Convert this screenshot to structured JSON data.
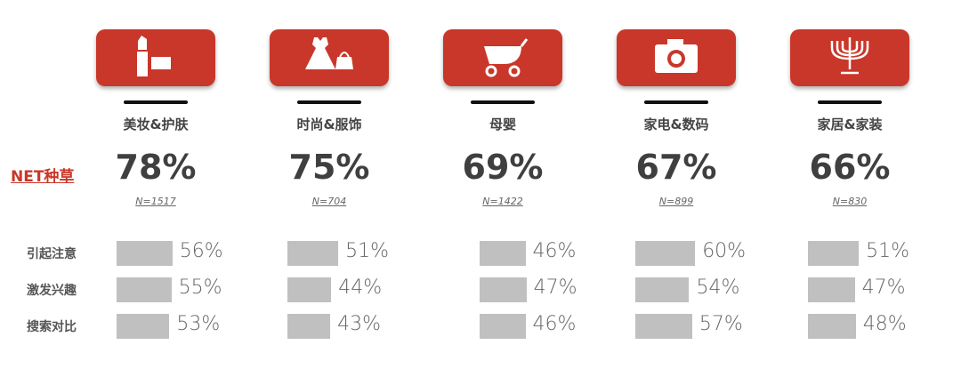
{
  "net_label": "NET种草",
  "row_labels": [
    "引起注意",
    "激发兴趣",
    "搜索对比"
  ],
  "accent_color": "#c9372a",
  "categories": [
    {
      "name": "美妆&护肤",
      "icon": "lipstick-icon",
      "net": "78%",
      "n": "N=1517",
      "rows": [
        "56%",
        "55%",
        "53%"
      ]
    },
    {
      "name": "时尚&服饰",
      "icon": "dress-bag-icon",
      "net": "75%",
      "n": "N=704",
      "rows": [
        "51%",
        "44%",
        "43%"
      ]
    },
    {
      "name": "母婴",
      "icon": "stroller-icon",
      "net": "69%",
      "n": "N=1422",
      "rows": [
        "46%",
        "47%",
        "46%"
      ]
    },
    {
      "name": "家电&数码",
      "icon": "camera-icon",
      "net": "67%",
      "n": "N=899",
      "rows": [
        "60%",
        "54%",
        "57%"
      ]
    },
    {
      "name": "家居&家装",
      "icon": "menorah-icon",
      "net": "66%",
      "n": "N=830",
      "rows": [
        "51%",
        "47%",
        "48%"
      ]
    }
  ],
  "chart_data": {
    "type": "bar",
    "categories": [
      "美妆&护肤",
      "时尚&服饰",
      "母婴",
      "家电&数码",
      "家居&家装"
    ],
    "series": [
      {
        "name": "引起注意",
        "values": [
          56,
          51,
          46,
          60,
          51
        ]
      },
      {
        "name": "激发兴趣",
        "values": [
          55,
          44,
          47,
          54,
          47
        ]
      },
      {
        "name": "搜索对比",
        "values": [
          53,
          43,
          46,
          57,
          48
        ]
      }
    ],
    "net_values": [
      78,
      75,
      69,
      67,
      66
    ]
  }
}
